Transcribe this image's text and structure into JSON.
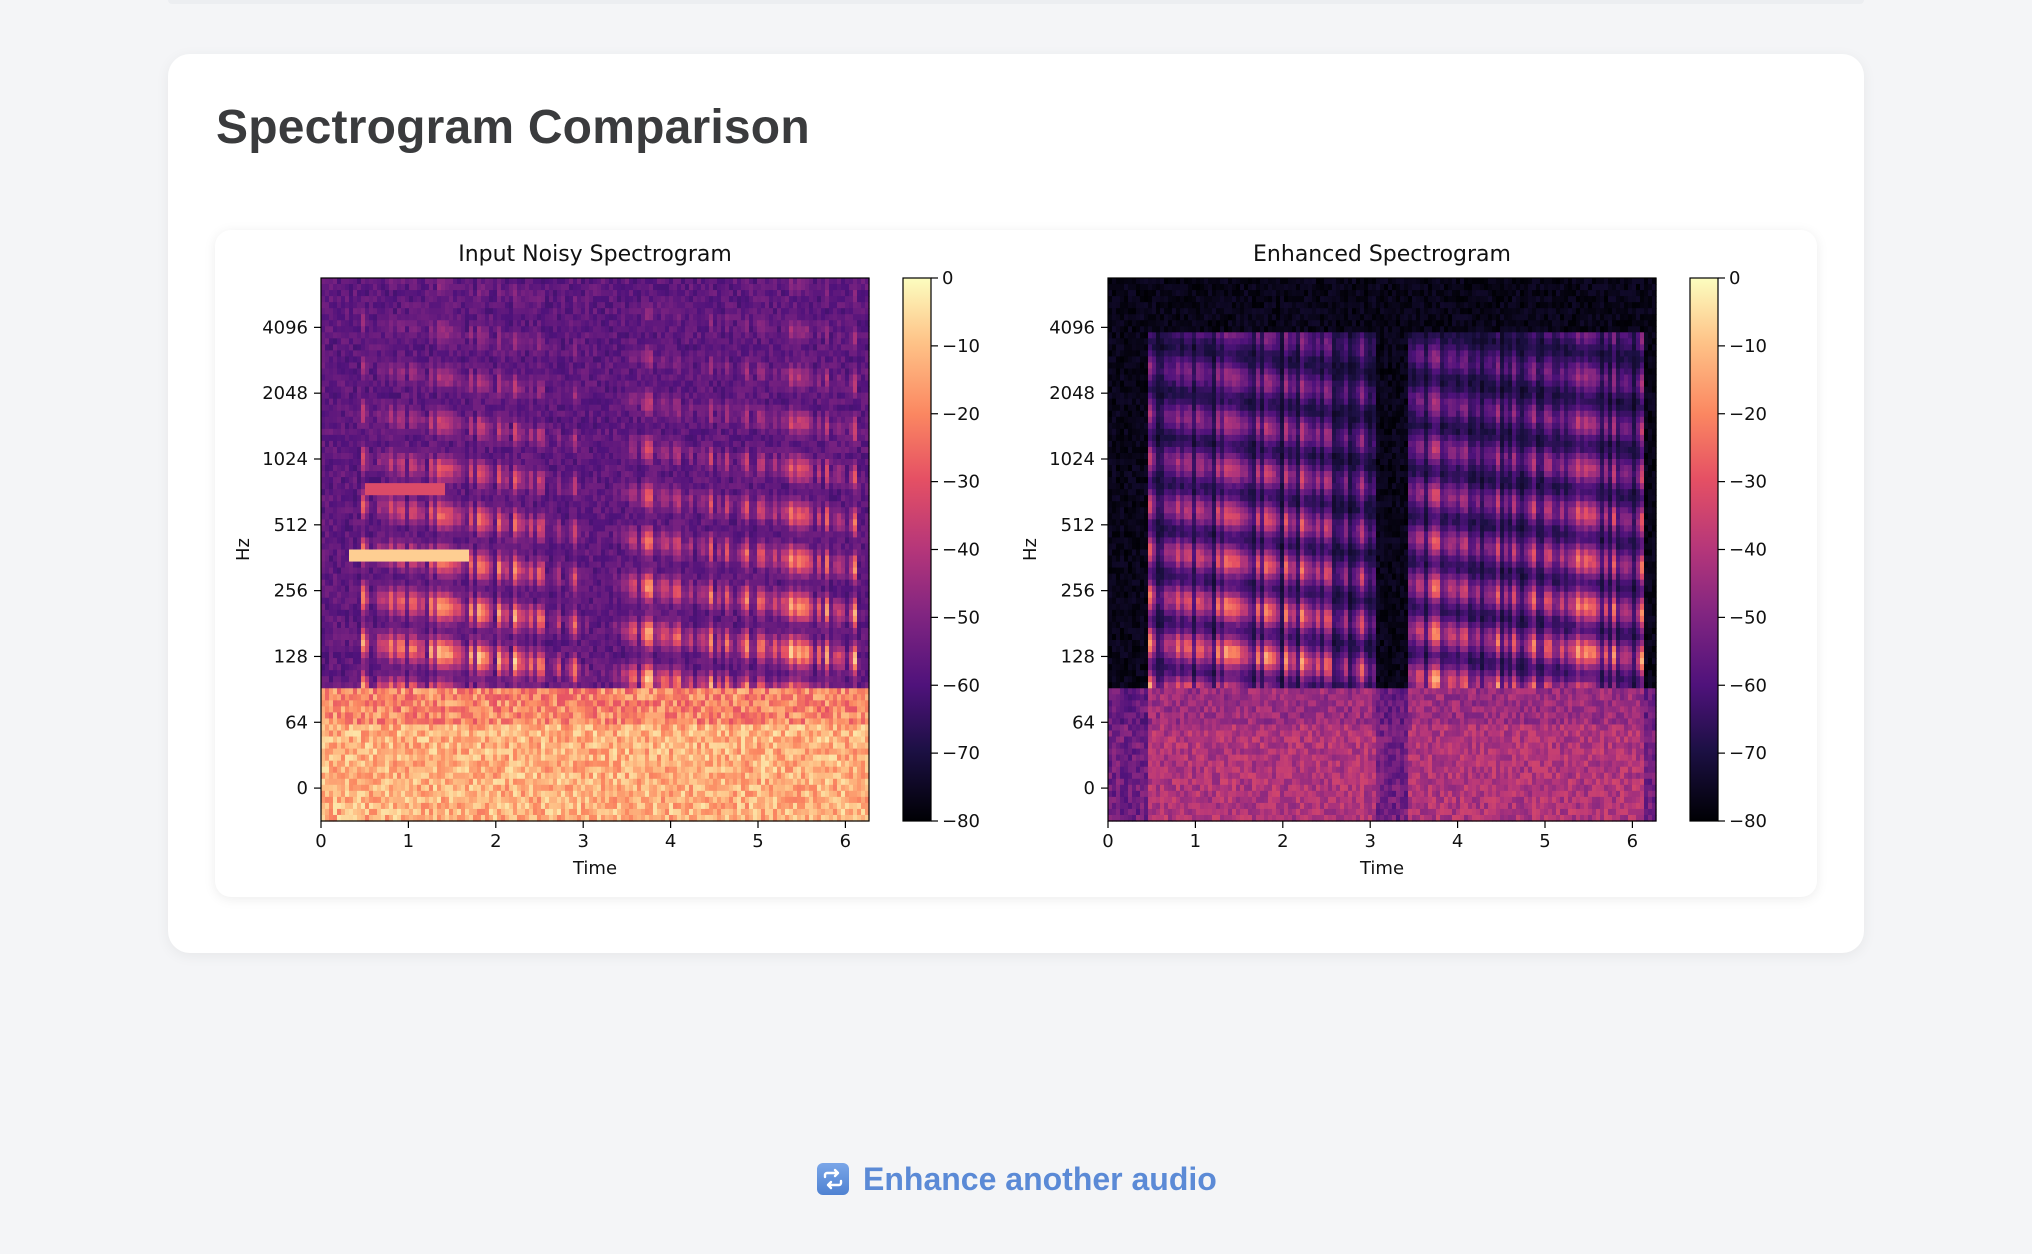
{
  "page": {
    "title": "Spectrogram Comparison",
    "action_link": "Enhance another audio",
    "action_icon": "repeat-arrows-icon",
    "accent_color": "#5b8ad6"
  },
  "chart_data": [
    {
      "type": "heatmap",
      "title": "Input Noisy Spectrogram",
      "xlabel": "Time",
      "ylabel": "Hz",
      "x_ticks": [
        0,
        1,
        2,
        3,
        4,
        5,
        6
      ],
      "xlim": [
        0,
        6.27
      ],
      "y_scale": "symlog",
      "y_ticks": [
        "0",
        "64",
        "128",
        "256",
        "512",
        "1024",
        "2048",
        "4096"
      ],
      "colorbar": {
        "label": "",
        "ticks": [
          "0",
          "−10",
          "−20",
          "−30",
          "−40",
          "−50",
          "−60",
          "−70",
          "−80"
        ],
        "range": [
          -80,
          0
        ],
        "colormap": "magma"
      },
      "description_values": {
        "noise_floor_db": -55,
        "low_freq_energy_db": -15
      }
    },
    {
      "type": "heatmap",
      "title": "Enhanced Spectrogram",
      "xlabel": "Time",
      "ylabel": "Hz",
      "x_ticks": [
        0,
        1,
        2,
        3,
        4,
        5,
        6
      ],
      "xlim": [
        0,
        6.27
      ],
      "y_scale": "symlog",
      "y_ticks": [
        "0",
        "64",
        "128",
        "256",
        "512",
        "1024",
        "2048",
        "4096"
      ],
      "colorbar": {
        "label": "",
        "ticks": [
          "0",
          "−10",
          "−20",
          "−30",
          "−40",
          "−50",
          "−60",
          "−70",
          "−80"
        ],
        "range": [
          -80,
          0
        ],
        "colormap": "magma"
      },
      "description_values": {
        "noise_floor_db": -80,
        "low_freq_energy_db": -45
      }
    }
  ]
}
